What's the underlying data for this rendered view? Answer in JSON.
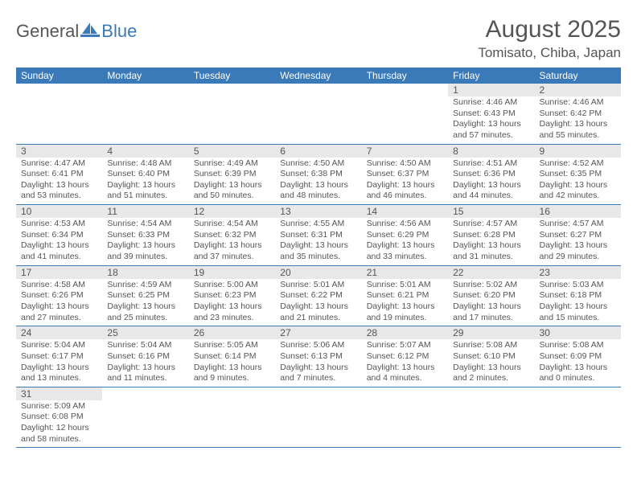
{
  "logo": {
    "general": "General",
    "blue": "Blue"
  },
  "title": "August 2025",
  "location": "Tomisato, Chiba, Japan",
  "colors": {
    "header_bg": "#3a7ab8",
    "header_fg": "#ffffff",
    "daynum_bg": "#e8e8e8",
    "border": "#3a7ab8",
    "text": "#555555",
    "background": "#ffffff"
  },
  "weekdays": [
    "Sunday",
    "Monday",
    "Tuesday",
    "Wednesday",
    "Thursday",
    "Friday",
    "Saturday"
  ],
  "weeks": [
    [
      null,
      null,
      null,
      null,
      null,
      {
        "n": "1",
        "sr": "4:46 AM",
        "ss": "6:43 PM",
        "dl": "13 hours and 57 minutes."
      },
      {
        "n": "2",
        "sr": "4:46 AM",
        "ss": "6:42 PM",
        "dl": "13 hours and 55 minutes."
      }
    ],
    [
      {
        "n": "3",
        "sr": "4:47 AM",
        "ss": "6:41 PM",
        "dl": "13 hours and 53 minutes."
      },
      {
        "n": "4",
        "sr": "4:48 AM",
        "ss": "6:40 PM",
        "dl": "13 hours and 51 minutes."
      },
      {
        "n": "5",
        "sr": "4:49 AM",
        "ss": "6:39 PM",
        "dl": "13 hours and 50 minutes."
      },
      {
        "n": "6",
        "sr": "4:50 AM",
        "ss": "6:38 PM",
        "dl": "13 hours and 48 minutes."
      },
      {
        "n": "7",
        "sr": "4:50 AM",
        "ss": "6:37 PM",
        "dl": "13 hours and 46 minutes."
      },
      {
        "n": "8",
        "sr": "4:51 AM",
        "ss": "6:36 PM",
        "dl": "13 hours and 44 minutes."
      },
      {
        "n": "9",
        "sr": "4:52 AM",
        "ss": "6:35 PM",
        "dl": "13 hours and 42 minutes."
      }
    ],
    [
      {
        "n": "10",
        "sr": "4:53 AM",
        "ss": "6:34 PM",
        "dl": "13 hours and 41 minutes."
      },
      {
        "n": "11",
        "sr": "4:54 AM",
        "ss": "6:33 PM",
        "dl": "13 hours and 39 minutes."
      },
      {
        "n": "12",
        "sr": "4:54 AM",
        "ss": "6:32 PM",
        "dl": "13 hours and 37 minutes."
      },
      {
        "n": "13",
        "sr": "4:55 AM",
        "ss": "6:31 PM",
        "dl": "13 hours and 35 minutes."
      },
      {
        "n": "14",
        "sr": "4:56 AM",
        "ss": "6:29 PM",
        "dl": "13 hours and 33 minutes."
      },
      {
        "n": "15",
        "sr": "4:57 AM",
        "ss": "6:28 PM",
        "dl": "13 hours and 31 minutes."
      },
      {
        "n": "16",
        "sr": "4:57 AM",
        "ss": "6:27 PM",
        "dl": "13 hours and 29 minutes."
      }
    ],
    [
      {
        "n": "17",
        "sr": "4:58 AM",
        "ss": "6:26 PM",
        "dl": "13 hours and 27 minutes."
      },
      {
        "n": "18",
        "sr": "4:59 AM",
        "ss": "6:25 PM",
        "dl": "13 hours and 25 minutes."
      },
      {
        "n": "19",
        "sr": "5:00 AM",
        "ss": "6:23 PM",
        "dl": "13 hours and 23 minutes."
      },
      {
        "n": "20",
        "sr": "5:01 AM",
        "ss": "6:22 PM",
        "dl": "13 hours and 21 minutes."
      },
      {
        "n": "21",
        "sr": "5:01 AM",
        "ss": "6:21 PM",
        "dl": "13 hours and 19 minutes."
      },
      {
        "n": "22",
        "sr": "5:02 AM",
        "ss": "6:20 PM",
        "dl": "13 hours and 17 minutes."
      },
      {
        "n": "23",
        "sr": "5:03 AM",
        "ss": "6:18 PM",
        "dl": "13 hours and 15 minutes."
      }
    ],
    [
      {
        "n": "24",
        "sr": "5:04 AM",
        "ss": "6:17 PM",
        "dl": "13 hours and 13 minutes."
      },
      {
        "n": "25",
        "sr": "5:04 AM",
        "ss": "6:16 PM",
        "dl": "13 hours and 11 minutes."
      },
      {
        "n": "26",
        "sr": "5:05 AM",
        "ss": "6:14 PM",
        "dl": "13 hours and 9 minutes."
      },
      {
        "n": "27",
        "sr": "5:06 AM",
        "ss": "6:13 PM",
        "dl": "13 hours and 7 minutes."
      },
      {
        "n": "28",
        "sr": "5:07 AM",
        "ss": "6:12 PM",
        "dl": "13 hours and 4 minutes."
      },
      {
        "n": "29",
        "sr": "5:08 AM",
        "ss": "6:10 PM",
        "dl": "13 hours and 2 minutes."
      },
      {
        "n": "30",
        "sr": "5:08 AM",
        "ss": "6:09 PM",
        "dl": "13 hours and 0 minutes."
      }
    ],
    [
      {
        "n": "31",
        "sr": "5:09 AM",
        "ss": "6:08 PM",
        "dl": "12 hours and 58 minutes."
      },
      null,
      null,
      null,
      null,
      null,
      null
    ]
  ],
  "labels": {
    "sunrise": "Sunrise:",
    "sunset": "Sunset:",
    "daylight": "Daylight:"
  }
}
